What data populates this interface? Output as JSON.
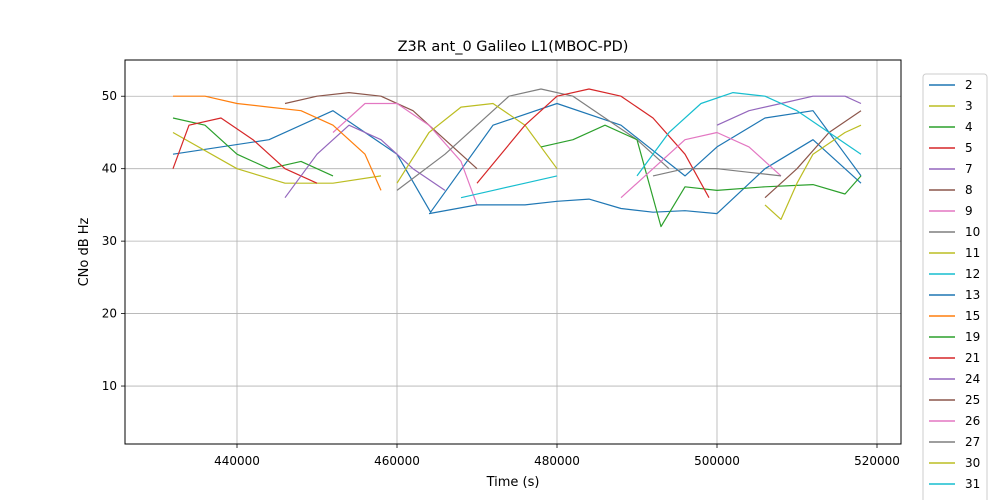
{
  "chart_data": {
    "type": "line",
    "title": "Z3R ant_0 Galileo L1(MBOC-PD)",
    "xlabel": "Time (s)",
    "ylabel": "CNo dB Hz",
    "xlim": [
      426000,
      523000
    ],
    "ylim": [
      2,
      55
    ],
    "xticks": [
      440000,
      460000,
      480000,
      500000,
      520000
    ],
    "xtick_labels": [
      "440000",
      "460000",
      "480000",
      "500000",
      "520000"
    ],
    "yticks": [
      10,
      20,
      30,
      40,
      50
    ],
    "ytick_labels": [
      "10",
      "20",
      "30",
      "40",
      "50"
    ],
    "grid": true,
    "legend_position": "outside right",
    "series": [
      {
        "name": "2",
        "color": "#1f77b4",
        "x": [
          432000,
          444000,
          452000,
          460000,
          464200,
          472000,
          480000,
          488000,
          496000,
          500000,
          506000,
          512000,
          516000,
          518000
        ],
        "y": [
          42,
          44,
          48,
          42,
          34,
          46,
          49,
          46,
          39,
          43,
          47,
          48,
          42,
          39
        ]
      },
      {
        "name": "3",
        "color": "#bcbd22",
        "x": [
          432000,
          440000,
          446000,
          452000,
          458000
        ],
        "y": [
          45,
          40,
          38,
          38,
          39
        ]
      },
      {
        "name": "4",
        "color": "#2ca02c",
        "x": [
          432000,
          436000,
          440000,
          444000,
          448000,
          452000
        ],
        "y": [
          47,
          46,
          42,
          40,
          41,
          39
        ]
      },
      {
        "name": "5",
        "color": "#d62728",
        "x": [
          432000,
          434000,
          438000,
          442000,
          446000,
          450000
        ],
        "y": [
          40,
          46,
          47,
          44,
          40,
          38
        ]
      },
      {
        "name": "7",
        "color": "#9467bd",
        "x": [
          446000,
          450000,
          454000,
          458000,
          462000,
          466000
        ],
        "y": [
          36,
          42,
          46,
          44,
          40,
          37
        ]
      },
      {
        "name": "8",
        "color": "#8c564b",
        "x": [
          446000,
          450000,
          454000,
          458000,
          462000,
          466000,
          470000
        ],
        "y": [
          49,
          50,
          50.5,
          50,
          48,
          44,
          40
        ]
      },
      {
        "name": "9",
        "color": "#e377c2",
        "x": [
          452000,
          456000,
          460000,
          464000,
          468000,
          470000
        ],
        "y": [
          45,
          49,
          49,
          46,
          41,
          35
        ]
      },
      {
        "name": "10",
        "color": "#7f7f7f",
        "x": [
          460000,
          466000,
          470000,
          474000,
          478000,
          482000,
          486000,
          490000,
          494000
        ],
        "y": [
          37,
          42,
          46,
          50,
          51,
          50,
          47,
          44,
          40
        ]
      },
      {
        "name": "11",
        "color": "#bcbd22",
        "x": [
          460000,
          464000,
          468000,
          472000,
          476000,
          480000
        ],
        "y": [
          38,
          45,
          48.5,
          49,
          46,
          40
        ]
      },
      {
        "name": "12",
        "color": "#17becf",
        "x": [
          468000,
          472000,
          476000,
          480000
        ],
        "y": [
          36,
          37,
          38,
          39
        ]
      },
      {
        "name": "13",
        "color": "#1f77b4",
        "x": [
          464000,
          470000,
          476000,
          480000,
          484000,
          488000,
          492000,
          496000,
          500000,
          506000,
          512000,
          516000,
          518000
        ],
        "y": [
          33.8,
          35,
          35,
          35.5,
          35.8,
          34.5,
          34,
          34.2,
          33.8,
          40,
          44,
          40,
          38
        ]
      },
      {
        "name": "15",
        "color": "#ff7f0e",
        "x": [
          432000,
          436000,
          440000,
          444000,
          448000,
          452000,
          456000,
          458000
        ],
        "y": [
          50,
          50,
          49,
          48.5,
          48,
          46,
          42,
          37
        ]
      },
      {
        "name": "19",
        "color": "#2ca02c",
        "x": [
          478000,
          482000,
          486000,
          490000,
          493000,
          496000,
          500000,
          506000,
          512000,
          516000,
          518000
        ],
        "y": [
          43,
          44,
          46,
          44,
          32,
          37.5,
          37,
          37.5,
          37.8,
          36.5,
          39
        ]
      },
      {
        "name": "21",
        "color": "#d62728",
        "x": [
          470000,
          476000,
          480000,
          484000,
          488000,
          492000,
          496000,
          499000
        ],
        "y": [
          38,
          46,
          50,
          51,
          50,
          47,
          42,
          36
        ]
      },
      {
        "name": "24",
        "color": "#9467bd",
        "x": [
          500000,
          504000,
          508000,
          512000,
          516000,
          518000
        ],
        "y": [
          46,
          48,
          49,
          50,
          50,
          49
        ]
      },
      {
        "name": "25",
        "color": "#8c564b",
        "x": [
          506000,
          510000,
          514000,
          518000
        ],
        "y": [
          36,
          40,
          45,
          48
        ]
      },
      {
        "name": "26",
        "color": "#e377c2",
        "x": [
          488000,
          492000,
          496000,
          500000,
          504000,
          508000
        ],
        "y": [
          36,
          40,
          44,
          45,
          43,
          39
        ]
      },
      {
        "name": "27",
        "color": "#7f7f7f",
        "x": [
          492000,
          496000,
          500000,
          504000,
          508000
        ],
        "y": [
          39,
          40,
          40,
          39.5,
          39
        ]
      },
      {
        "name": "30",
        "color": "#bcbd22",
        "x": [
          506000,
          508000,
          510000,
          512000,
          516000,
          518000
        ],
        "y": [
          35,
          33,
          38,
          42,
          45,
          46
        ]
      },
      {
        "name": "31",
        "color": "#17becf",
        "x": [
          490000,
          494000,
          498000,
          502000,
          506000,
          510000,
          514000,
          518000
        ],
        "y": [
          39,
          45,
          49,
          50.5,
          50,
          48,
          45,
          42
        ]
      }
    ]
  }
}
